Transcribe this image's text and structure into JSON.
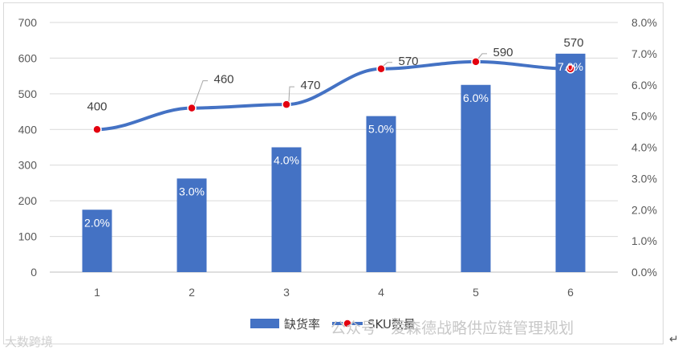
{
  "chart_data": {
    "type": "bar",
    "categories": [
      "1",
      "2",
      "3",
      "4",
      "5",
      "6"
    ],
    "series": [
      {
        "name": "缺货率",
        "type": "bar",
        "axis": "right",
        "values": [
          2.0,
          3.0,
          4.0,
          5.0,
          6.0,
          7.0
        ],
        "labels": [
          "2.0%",
          "3.0%",
          "4.0%",
          "5.0%",
          "6.0%",
          "7.0%"
        ],
        "color": "#4472c4"
      },
      {
        "name": "SKU数量",
        "type": "line",
        "axis": "left",
        "values": [
          400,
          460,
          470,
          570,
          590,
          570
        ],
        "labels": [
          "400",
          "460",
          "470",
          "570",
          "590",
          "570"
        ],
        "color": "#4472c4",
        "marker_color": "#e3000f"
      }
    ],
    "y_left": {
      "ylim": [
        0,
        700
      ],
      "ticks": [
        "0",
        "100",
        "200",
        "300",
        "400",
        "500",
        "600",
        "700"
      ]
    },
    "y_right": {
      "ylim": [
        0,
        8
      ],
      "ticks": [
        "0.0%",
        "1.0%",
        "2.0%",
        "3.0%",
        "4.0%",
        "5.0%",
        "6.0%",
        "7.0%",
        "8.0%"
      ]
    },
    "grid": true,
    "legend_position": "bottom"
  },
  "watermark": {
    "right": "公众号 · 爱森德战略供应链管理规划",
    "left": "大数跨境"
  },
  "return_mark": "↵"
}
